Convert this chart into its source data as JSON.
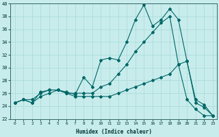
{
  "xlabel": "Humidex (Indice chaleur)",
  "bg_color": "#c8ecec",
  "grid_color": "#a8d8d8",
  "line_color": "#006666",
  "xlim": [
    -0.5,
    23.5
  ],
  "ylim": [
    22,
    40
  ],
  "xticks": [
    0,
    1,
    2,
    3,
    4,
    5,
    6,
    7,
    8,
    9,
    10,
    11,
    12,
    13,
    14,
    15,
    16,
    17,
    18,
    19,
    20,
    21,
    22,
    23
  ],
  "yticks": [
    22,
    24,
    26,
    28,
    30,
    32,
    34,
    36,
    38,
    40
  ],
  "line1_x": [
    0,
    1,
    2,
    3,
    4,
    5,
    6,
    7,
    8,
    9,
    10,
    11,
    12,
    13,
    14,
    15,
    16,
    17,
    18,
    19,
    20,
    21,
    22,
    23
  ],
  "line1_y": [
    24.5,
    25.0,
    24.5,
    26.2,
    26.5,
    26.5,
    26.2,
    25.8,
    28.5,
    27.0,
    31.2,
    31.5,
    31.2,
    34.0,
    37.5,
    39.8,
    36.5,
    37.5,
    39.2,
    37.5,
    31.0,
    25.0,
    24.2,
    22.5
  ],
  "line2_x": [
    0,
    1,
    2,
    3,
    4,
    5,
    6,
    7,
    8,
    9,
    10,
    11,
    12,
    13,
    14,
    15,
    16,
    17,
    18,
    19,
    20,
    21,
    22,
    23
  ],
  "line2_y": [
    24.5,
    25.0,
    25.0,
    26.0,
    26.5,
    26.5,
    26.0,
    26.0,
    26.0,
    26.0,
    27.0,
    27.5,
    29.0,
    30.5,
    32.5,
    34.0,
    35.5,
    37.0,
    38.0,
    30.5,
    31.0,
    24.5,
    23.8,
    22.5
  ],
  "line3_x": [
    0,
    1,
    2,
    3,
    4,
    5,
    6,
    7,
    8,
    9,
    10,
    11,
    12,
    13,
    14,
    15,
    16,
    17,
    18,
    19,
    20,
    21,
    22,
    23
  ],
  "line3_y": [
    24.5,
    25.0,
    24.5,
    25.5,
    26.0,
    26.5,
    26.0,
    25.5,
    25.5,
    25.5,
    25.5,
    25.5,
    26.0,
    26.5,
    27.0,
    27.5,
    28.0,
    28.5,
    29.0,
    30.5,
    25.0,
    23.5,
    22.5,
    22.5
  ]
}
